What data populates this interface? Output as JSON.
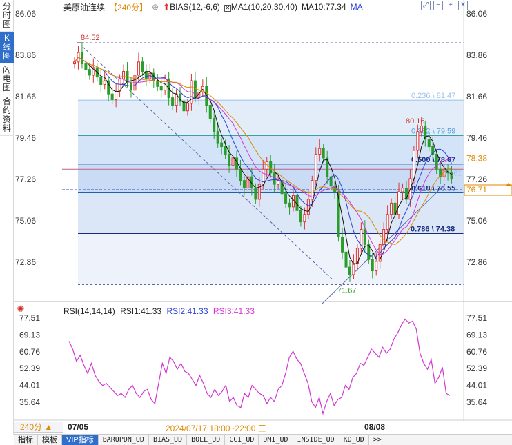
{
  "left_rail": {
    "tabs": [
      "分时图",
      "K线图",
      "闪电图",
      "合约资料"
    ],
    "active_index": 1
  },
  "header": {
    "symbol": "美原油连续",
    "period": "【240分】",
    "bias_label": "BIAS(12,-6,6)",
    "ma_label": "MA1(10,20,30,40)",
    "ma10_label": "MA10:77.34",
    "ma_tag": "MA"
  },
  "y_axis_main": [
    "86.06",
    "83.86",
    "81.66",
    "79.46",
    "77.26",
    "75.06",
    "72.86"
  ],
  "price_tags": {
    "right_a": "78.38",
    "right_b": "76.71"
  },
  "annotations": {
    "high": "84.52",
    "low": "71.67",
    "recent_high": "80.16"
  },
  "fibonacci": [
    {
      "label": "0.236 \\ 81.47",
      "price": 81.47
    },
    {
      "label": "0.382 \\ 79.59",
      "price": 79.59
    },
    {
      "label": "0.500 \\ 78.07",
      "price": 78.07
    },
    {
      "label": "0.618 \\ 76.55",
      "price": 76.55
    },
    {
      "label": "0.786 \\ 74.38",
      "price": 74.38
    }
  ],
  "extra_label": "77.61",
  "rsi": {
    "header": "RSI(14,14,14)",
    "rsi1": "RSI1:41.33",
    "rsi2": "RSI2:41.33",
    "rsi3": "RSI3:41.33",
    "y_axis": [
      "77.51",
      "69.13",
      "60.76",
      "52.39",
      "44.01",
      "35.64"
    ]
  },
  "dates": {
    "left": "07/05",
    "cursor": "2024/07/17 18:00~22:00 三",
    "right": "08/08"
  },
  "period_select": "240分 ▲",
  "bottom_tabs": [
    "指标",
    "模板",
    "VIP指标",
    "BARUPDN_UD",
    "BIAS_UD",
    "BOLL_UD",
    "CCI_UD",
    "DMI_UD",
    "INSIDE_UD",
    "KD_UD",
    ">>"
  ],
  "bottom_active": 2,
  "colors": {
    "up": "#e03030",
    "down": "#2a9d2a",
    "ma1": "#111111",
    "ma2": "#2a3fd8",
    "ma3": "#d236d2",
    "ma4": "#e08a00",
    "accent": "#2f6fc9"
  }
}
